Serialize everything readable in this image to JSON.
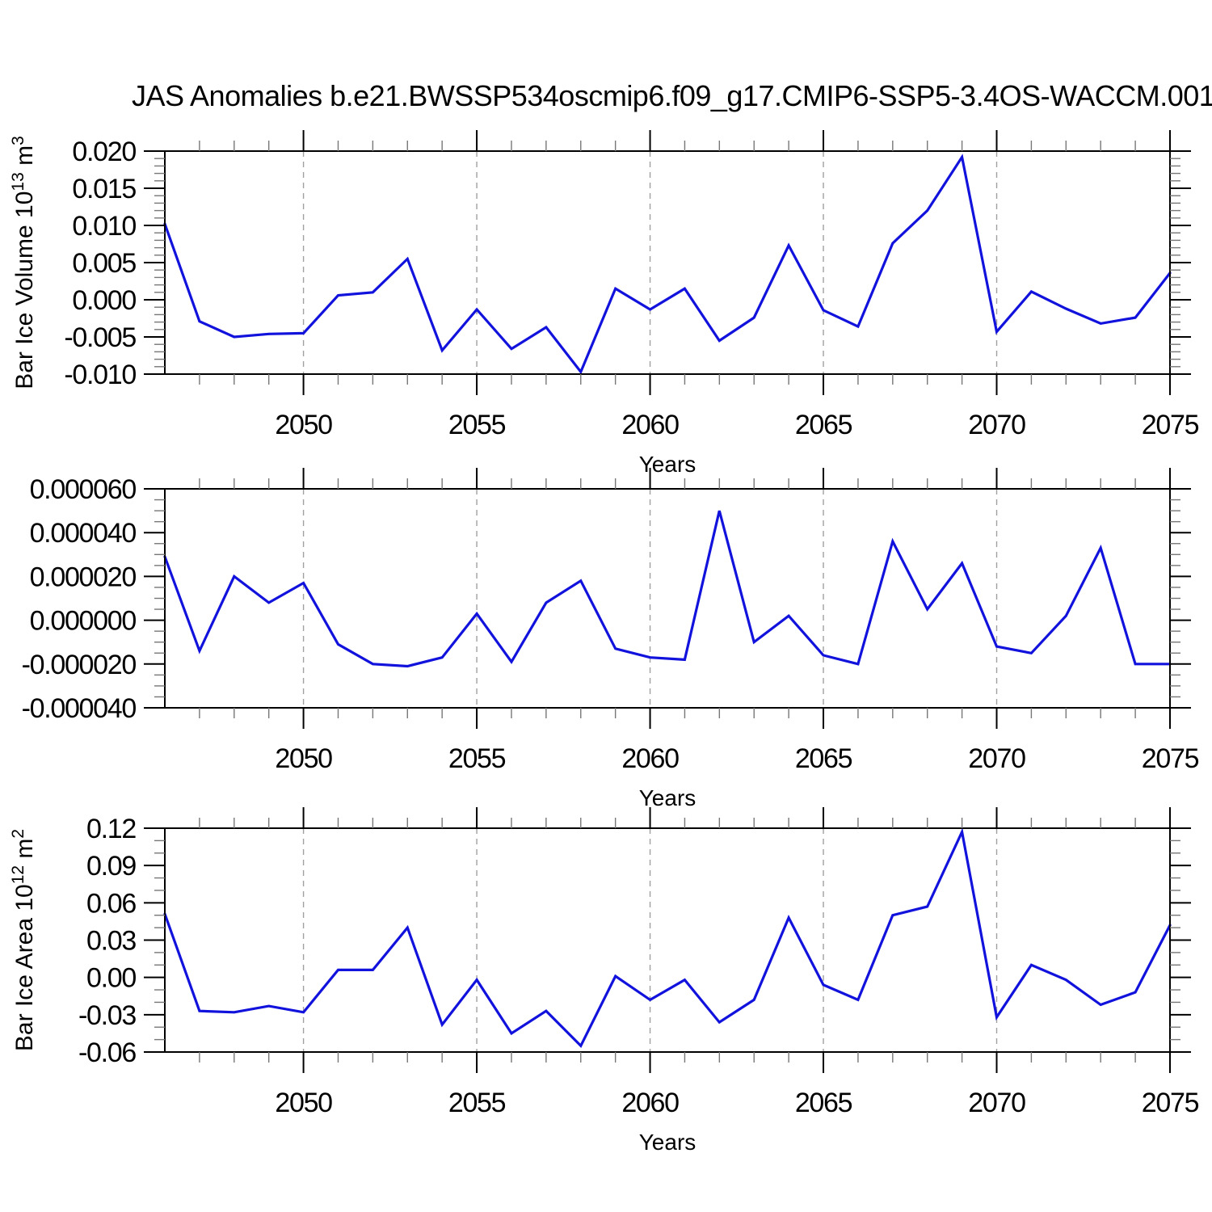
{
  "title": "JAS Anomalies b.e21.BWSSP534oscmip6.f09_g17.CMIP6-SSP5-3.4OS-WACCM.001",
  "style": {
    "line_color": "#1212dd",
    "axis_color": "#000000",
    "major_tick_color": "#000000",
    "minor_tick_color": "#777777",
    "grid_color": "#a0a0a0",
    "background": "#ffffff",
    "text_color": "#000000"
  },
  "x_axis": {
    "label": "Years",
    "x_min": 2046,
    "x_max": 2075,
    "major_tick_labels": [
      "2050",
      "2055",
      "2060",
      "2065",
      "2070",
      "2075"
    ],
    "major_ticks": [
      2050,
      2055,
      2060,
      2065,
      2070,
      2075
    ],
    "gridlines": [
      2050,
      2055,
      2060,
      2065,
      2070
    ],
    "grid_style": "dashed"
  },
  "chart_data": [
    {
      "type": "line",
      "name": "bar-ice-volume",
      "ylabel_parts": [
        {
          "t": "Bar Ice Volume 10"
        },
        {
          "t": "13",
          "sup": true
        },
        {
          "t": " m"
        },
        {
          "t": "3",
          "sup": true
        }
      ],
      "xlabel": "Years",
      "ylim": [
        -0.01,
        0.02
      ],
      "ytick_major": 0.005,
      "ytick_minor": 0.001,
      "ytick_labels": [
        "0.020",
        "0.015",
        "0.010",
        "0.005",
        "0.000",
        "-0.005",
        "-0.010"
      ],
      "x": [
        2046,
        2047,
        2048,
        2049,
        2050,
        2051,
        2052,
        2053,
        2054,
        2055,
        2056,
        2057,
        2058,
        2059,
        2060,
        2061,
        2062,
        2063,
        2064,
        2065,
        2066,
        2067,
        2068,
        2069,
        2070,
        2071,
        2072,
        2073,
        2074,
        2075
      ],
      "values": [
        0.0102,
        -0.0029,
        -0.005,
        -0.0046,
        -0.0045,
        0.0006,
        0.001,
        0.0055,
        -0.0068,
        -0.0013,
        -0.0066,
        -0.0037,
        -0.0097,
        0.0015,
        -0.0013,
        0.0015,
        -0.0055,
        -0.0024,
        0.0073,
        -0.0014,
        -0.0036,
        0.0076,
        0.012,
        0.0192,
        -0.0043,
        0.0011,
        -0.0012,
        -0.0032,
        -0.0024,
        0.0036
      ]
    },
    {
      "type": "line",
      "name": "bar-ice-middle-series",
      "ylabel_parts": [],
      "xlabel": "Years",
      "ylim": [
        -4e-05,
        6e-05
      ],
      "ytick_major": 2e-05,
      "ytick_minor": 5e-06,
      "ytick_labels": [
        "0.000060",
        "0.000040",
        "0.000020",
        "0.000000",
        "-0.000020",
        "-0.000040"
      ],
      "x": [
        2046,
        2047,
        2048,
        2049,
        2050,
        2051,
        2052,
        2053,
        2054,
        2055,
        2056,
        2057,
        2058,
        2059,
        2060,
        2061,
        2062,
        2063,
        2064,
        2065,
        2066,
        2067,
        2068,
        2069,
        2070,
        2071,
        2072,
        2073,
        2074,
        2075
      ],
      "values": [
        2.9e-05,
        -1.4e-05,
        2e-05,
        8e-06,
        1.7e-05,
        -1.1e-05,
        -2e-05,
        -2.1e-05,
        -1.7e-05,
        3e-06,
        -1.9e-05,
        8e-06,
        1.8e-05,
        -1.3e-05,
        -1.7e-05,
        -1.8e-05,
        5e-05,
        -1e-05,
        2e-06,
        -1.6e-05,
        -2e-05,
        3.6e-05,
        5e-06,
        2.6e-05,
        -1.2e-05,
        -1.5e-05,
        2e-06,
        3.3e-05,
        -2e-05,
        -2e-05
      ]
    },
    {
      "type": "line",
      "name": "bar-ice-area",
      "ylabel_parts": [
        {
          "t": "Bar Ice Area 10"
        },
        {
          "t": "12",
          "sup": true
        },
        {
          "t": " m"
        },
        {
          "t": "2",
          "sup": true
        }
      ],
      "xlabel": "Years",
      "ylim": [
        -0.06,
        0.12
      ],
      "ytick_major": 0.03,
      "ytick_minor": 0.01,
      "ytick_labels": [
        "0.12",
        "0.09",
        "0.06",
        "0.03",
        "0.00",
        "-0.03",
        "-0.06"
      ],
      "x": [
        2046,
        2047,
        2048,
        2049,
        2050,
        2051,
        2052,
        2053,
        2054,
        2055,
        2056,
        2057,
        2058,
        2059,
        2060,
        2061,
        2062,
        2063,
        2064,
        2065,
        2066,
        2067,
        2068,
        2069,
        2070,
        2071,
        2072,
        2073,
        2074,
        2075
      ],
      "values": [
        0.051,
        -0.027,
        -0.028,
        -0.023,
        -0.028,
        0.006,
        0.006,
        0.04,
        -0.038,
        -0.002,
        -0.045,
        -0.027,
        -0.055,
        0.001,
        -0.018,
        -0.002,
        -0.036,
        -0.018,
        0.048,
        -0.006,
        -0.018,
        0.05,
        0.057,
        0.117,
        -0.032,
        0.01,
        -0.002,
        -0.022,
        -0.012,
        0.042
      ]
    }
  ]
}
